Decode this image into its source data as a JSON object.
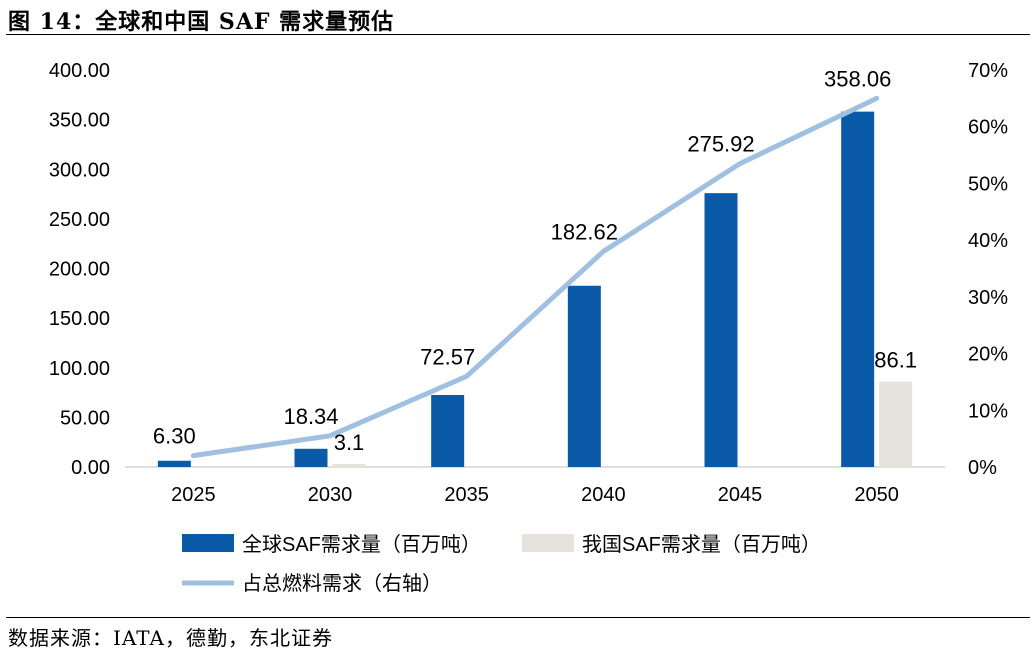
{
  "figure": {
    "title": "图 14：全球和中国 SAF 需求量预估",
    "source": "数据来源：IATA，德勤，东北证券"
  },
  "colors": {
    "global_bar": "#0b5aa8",
    "china_bar": "#e6e2dc",
    "share_line": "#9fc0e0"
  },
  "chart_data": {
    "type": "bar",
    "categories": [
      "2025",
      "2030",
      "2035",
      "2040",
      "2045",
      "2050"
    ],
    "series": [
      {
        "name": "全球SAF需求量（百万吨）",
        "kind": "bar",
        "axis": "left",
        "values": [
          6.3,
          18.34,
          72.57,
          182.62,
          275.92,
          358.06
        ],
        "labels": [
          "6.30",
          "18.34",
          "72.57",
          "182.62",
          "275.92",
          "358.06"
        ]
      },
      {
        "name": "我国SAF需求量（百万吨）",
        "kind": "bar",
        "axis": "left",
        "values": [
          null,
          3.1,
          null,
          null,
          null,
          86.1
        ],
        "labels": [
          "",
          "3.1",
          "",
          "",
          "",
          "86.1"
        ]
      },
      {
        "name": "占总燃料需求（右轴）",
        "kind": "line",
        "axis": "right",
        "values": [
          0.02,
          0.055,
          0.16,
          0.38,
          0.535,
          0.65
        ]
      }
    ],
    "y_left": {
      "lim": [
        0,
        400
      ],
      "ticks": [
        "0.00",
        "50.00",
        "100.00",
        "150.00",
        "200.00",
        "250.00",
        "300.00",
        "350.00",
        "400.00"
      ]
    },
    "y_right": {
      "lim": [
        0,
        0.7
      ],
      "ticks": [
        "0%",
        "10%",
        "20%",
        "30%",
        "40%",
        "50%",
        "60%",
        "70%"
      ]
    },
    "grid": false,
    "legend_position": "bottom"
  }
}
